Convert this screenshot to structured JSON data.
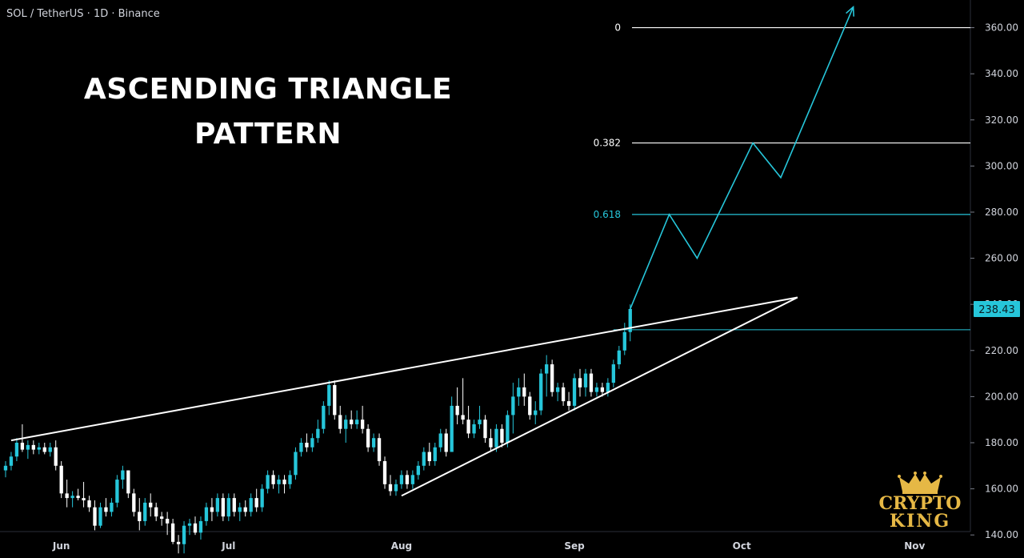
{
  "header": {
    "symbol": "SOL / TetherUS · 1D · Binance"
  },
  "title": {
    "line1": "ASCENDING TRIANGLE",
    "line2": "PATTERN"
  },
  "logo": {
    "line1": "CRYPTO",
    "line2": "KING",
    "color": "#e6b845"
  },
  "chart_data": {
    "type": "candlestick",
    "y_axis": {
      "ylim": [
        130,
        372
      ],
      "ticks": [
        140,
        160,
        180,
        200,
        220,
        240,
        260,
        280,
        300,
        320,
        340,
        360
      ],
      "tick_labels": [
        "140.00",
        "160.00",
        "180.00",
        "200.00",
        "220.00",
        "240.00",
        "260.00",
        "280.00",
        "300.00",
        "320.00",
        "340.00",
        "360.00"
      ]
    },
    "x_axis": {
      "months": [
        "Jun",
        "Jul",
        "Aug",
        "Sep",
        "Oct",
        "Nov"
      ],
      "month_day": [
        10,
        40,
        71,
        102,
        132,
        163
      ],
      "xlim": [
        -1,
        173
      ]
    },
    "last_price": "238.43",
    "colors": {
      "up": "#26c6da",
      "down": "#ffffff",
      "fib": "#26c6da",
      "line": "#ffffff"
    },
    "fib_levels": [
      {
        "label": "0",
        "value": 360,
        "color": "#ffffff"
      },
      {
        "label": "0.382",
        "value": 310,
        "color": "#ffffff"
      },
      {
        "label": "0.618",
        "value": 279,
        "color": "#26c6da"
      }
    ],
    "breakout_level": 229,
    "trendlines": [
      {
        "name": "resistance",
        "from": [
          1,
          181
        ],
        "to": [
          142,
          243
        ]
      },
      {
        "name": "support",
        "from": [
          71,
          157
        ],
        "to": [
          142,
          243
        ]
      }
    ],
    "projection_path": [
      [
        112,
        238
      ],
      [
        119,
        279
      ],
      [
        124,
        260
      ],
      [
        134,
        310
      ],
      [
        139,
        295
      ],
      [
        152,
        369
      ]
    ],
    "candles": [
      {
        "d": 0,
        "o": 168,
        "h": 172,
        "l": 165,
        "c": 170
      },
      {
        "d": 1,
        "o": 170,
        "h": 176,
        "l": 168,
        "c": 174
      },
      {
        "d": 2,
        "o": 174,
        "h": 182,
        "l": 172,
        "c": 180
      },
      {
        "d": 3,
        "o": 180,
        "h": 188,
        "l": 176,
        "c": 177
      },
      {
        "d": 4,
        "o": 177,
        "h": 181,
        "l": 173,
        "c": 179
      },
      {
        "d": 5,
        "o": 179,
        "h": 181,
        "l": 175,
        "c": 177
      },
      {
        "d": 6,
        "o": 177,
        "h": 180,
        "l": 175,
        "c": 178
      },
      {
        "d": 7,
        "o": 178,
        "h": 180,
        "l": 175,
        "c": 176
      },
      {
        "d": 8,
        "o": 176,
        "h": 180,
        "l": 174,
        "c": 178
      },
      {
        "d": 9,
        "o": 178,
        "h": 181,
        "l": 168,
        "c": 170
      },
      {
        "d": 10,
        "o": 170,
        "h": 172,
        "l": 156,
        "c": 158
      },
      {
        "d": 11,
        "o": 158,
        "h": 164,
        "l": 152,
        "c": 156
      },
      {
        "d": 12,
        "o": 156,
        "h": 159,
        "l": 152,
        "c": 157
      },
      {
        "d": 13,
        "o": 157,
        "h": 160,
        "l": 155,
        "c": 156
      },
      {
        "d": 14,
        "o": 156,
        "h": 163,
        "l": 152,
        "c": 155
      },
      {
        "d": 15,
        "o": 155,
        "h": 157,
        "l": 150,
        "c": 152
      },
      {
        "d": 16,
        "o": 152,
        "h": 155,
        "l": 142,
        "c": 144
      },
      {
        "d": 17,
        "o": 144,
        "h": 154,
        "l": 143,
        "c": 152
      },
      {
        "d": 18,
        "o": 152,
        "h": 156,
        "l": 148,
        "c": 150
      },
      {
        "d": 19,
        "o": 150,
        "h": 156,
        "l": 148,
        "c": 154
      },
      {
        "d": 20,
        "o": 154,
        "h": 166,
        "l": 152,
        "c": 164
      },
      {
        "d": 21,
        "o": 164,
        "h": 170,
        "l": 160,
        "c": 168
      },
      {
        "d": 22,
        "o": 168,
        "h": 168,
        "l": 156,
        "c": 158
      },
      {
        "d": 23,
        "o": 158,
        "h": 160,
        "l": 148,
        "c": 150
      },
      {
        "d": 24,
        "o": 150,
        "h": 156,
        "l": 142,
        "c": 146
      },
      {
        "d": 25,
        "o": 146,
        "h": 156,
        "l": 144,
        "c": 154
      },
      {
        "d": 26,
        "o": 154,
        "h": 158,
        "l": 148,
        "c": 152
      },
      {
        "d": 27,
        "o": 152,
        "h": 154,
        "l": 146,
        "c": 148
      },
      {
        "d": 28,
        "o": 148,
        "h": 150,
        "l": 144,
        "c": 147
      },
      {
        "d": 29,
        "o": 147,
        "h": 150,
        "l": 140,
        "c": 145
      },
      {
        "d": 30,
        "o": 145,
        "h": 147,
        "l": 136,
        "c": 137
      },
      {
        "d": 31,
        "o": 137,
        "h": 140,
        "l": 132,
        "c": 136
      },
      {
        "d": 32,
        "o": 136,
        "h": 146,
        "l": 132,
        "c": 144
      },
      {
        "d": 33,
        "o": 144,
        "h": 147,
        "l": 140,
        "c": 145
      },
      {
        "d": 34,
        "o": 145,
        "h": 148,
        "l": 140,
        "c": 141
      },
      {
        "d": 35,
        "o": 141,
        "h": 148,
        "l": 138,
        "c": 146
      },
      {
        "d": 36,
        "o": 146,
        "h": 154,
        "l": 144,
        "c": 152
      },
      {
        "d": 37,
        "o": 152,
        "h": 156,
        "l": 146,
        "c": 150
      },
      {
        "d": 38,
        "o": 150,
        "h": 158,
        "l": 148,
        "c": 156
      },
      {
        "d": 39,
        "o": 156,
        "h": 158,
        "l": 146,
        "c": 148
      },
      {
        "d": 40,
        "o": 148,
        "h": 158,
        "l": 146,
        "c": 156
      },
      {
        "d": 41,
        "o": 156,
        "h": 158,
        "l": 148,
        "c": 150
      },
      {
        "d": 42,
        "o": 150,
        "h": 154,
        "l": 146,
        "c": 152
      },
      {
        "d": 43,
        "o": 152,
        "h": 155,
        "l": 148,
        "c": 150
      },
      {
        "d": 44,
        "o": 150,
        "h": 158,
        "l": 148,
        "c": 156
      },
      {
        "d": 45,
        "o": 156,
        "h": 160,
        "l": 150,
        "c": 152
      },
      {
        "d": 46,
        "o": 152,
        "h": 162,
        "l": 150,
        "c": 160
      },
      {
        "d": 47,
        "o": 160,
        "h": 168,
        "l": 158,
        "c": 166
      },
      {
        "d": 48,
        "o": 166,
        "h": 168,
        "l": 160,
        "c": 162
      },
      {
        "d": 49,
        "o": 162,
        "h": 166,
        "l": 158,
        "c": 164
      },
      {
        "d": 50,
        "o": 164,
        "h": 166,
        "l": 158,
        "c": 162
      },
      {
        "d": 51,
        "o": 162,
        "h": 168,
        "l": 160,
        "c": 166
      },
      {
        "d": 52,
        "o": 166,
        "h": 178,
        "l": 164,
        "c": 176
      },
      {
        "d": 53,
        "o": 176,
        "h": 182,
        "l": 174,
        "c": 180
      },
      {
        "d": 54,
        "o": 180,
        "h": 184,
        "l": 176,
        "c": 178
      },
      {
        "d": 55,
        "o": 178,
        "h": 184,
        "l": 176,
        "c": 182
      },
      {
        "d": 56,
        "o": 182,
        "h": 190,
        "l": 180,
        "c": 186
      },
      {
        "d": 57,
        "o": 186,
        "h": 198,
        "l": 184,
        "c": 196
      },
      {
        "d": 58,
        "o": 196,
        "h": 207,
        "l": 192,
        "c": 205
      },
      {
        "d": 59,
        "o": 205,
        "h": 207,
        "l": 190,
        "c": 192
      },
      {
        "d": 60,
        "o": 192,
        "h": 196,
        "l": 184,
        "c": 186
      },
      {
        "d": 61,
        "o": 186,
        "h": 192,
        "l": 180,
        "c": 190
      },
      {
        "d": 62,
        "o": 190,
        "h": 194,
        "l": 186,
        "c": 188
      },
      {
        "d": 63,
        "o": 188,
        "h": 194,
        "l": 186,
        "c": 190
      },
      {
        "d": 64,
        "o": 190,
        "h": 196,
        "l": 184,
        "c": 186
      },
      {
        "d": 65,
        "o": 186,
        "h": 188,
        "l": 176,
        "c": 178
      },
      {
        "d": 66,
        "o": 178,
        "h": 184,
        "l": 176,
        "c": 182
      },
      {
        "d": 67,
        "o": 182,
        "h": 184,
        "l": 170,
        "c": 172
      },
      {
        "d": 68,
        "o": 172,
        "h": 174,
        "l": 160,
        "c": 162
      },
      {
        "d": 69,
        "o": 162,
        "h": 166,
        "l": 157,
        "c": 159
      },
      {
        "d": 70,
        "o": 159,
        "h": 164,
        "l": 157,
        "c": 162
      },
      {
        "d": 71,
        "o": 162,
        "h": 168,
        "l": 160,
        "c": 166
      },
      {
        "d": 72,
        "o": 166,
        "h": 168,
        "l": 160,
        "c": 162
      },
      {
        "d": 73,
        "o": 162,
        "h": 168,
        "l": 160,
        "c": 166
      },
      {
        "d": 74,
        "o": 166,
        "h": 172,
        "l": 164,
        "c": 170
      },
      {
        "d": 75,
        "o": 170,
        "h": 178,
        "l": 168,
        "c": 176
      },
      {
        "d": 76,
        "o": 176,
        "h": 180,
        "l": 170,
        "c": 172
      },
      {
        "d": 77,
        "o": 172,
        "h": 180,
        "l": 170,
        "c": 178
      },
      {
        "d": 78,
        "o": 178,
        "h": 186,
        "l": 176,
        "c": 184
      },
      {
        "d": 79,
        "o": 184,
        "h": 186,
        "l": 174,
        "c": 176
      },
      {
        "d": 80,
        "o": 176,
        "h": 200,
        "l": 176,
        "c": 196
      },
      {
        "d": 81,
        "o": 196,
        "h": 204,
        "l": 188,
        "c": 192
      },
      {
        "d": 82,
        "o": 192,
        "h": 208,
        "l": 188,
        "c": 190
      },
      {
        "d": 83,
        "o": 190,
        "h": 196,
        "l": 182,
        "c": 184
      },
      {
        "d": 84,
        "o": 184,
        "h": 190,
        "l": 182,
        "c": 188
      },
      {
        "d": 85,
        "o": 188,
        "h": 196,
        "l": 186,
        "c": 190
      },
      {
        "d": 86,
        "o": 190,
        "h": 192,
        "l": 180,
        "c": 182
      },
      {
        "d": 87,
        "o": 182,
        "h": 186,
        "l": 176,
        "c": 178
      },
      {
        "d": 88,
        "o": 178,
        "h": 188,
        "l": 176,
        "c": 186
      },
      {
        "d": 89,
        "o": 186,
        "h": 188,
        "l": 178,
        "c": 180
      },
      {
        "d": 90,
        "o": 180,
        "h": 194,
        "l": 178,
        "c": 192
      },
      {
        "d": 91,
        "o": 192,
        "h": 206,
        "l": 184,
        "c": 200
      },
      {
        "d": 92,
        "o": 200,
        "h": 208,
        "l": 196,
        "c": 204
      },
      {
        "d": 93,
        "o": 204,
        "h": 210,
        "l": 196,
        "c": 200
      },
      {
        "d": 94,
        "o": 200,
        "h": 202,
        "l": 190,
        "c": 192
      },
      {
        "d": 95,
        "o": 192,
        "h": 198,
        "l": 188,
        "c": 194
      },
      {
        "d": 96,
        "o": 194,
        "h": 212,
        "l": 192,
        "c": 210
      },
      {
        "d": 97,
        "o": 210,
        "h": 218,
        "l": 200,
        "c": 214
      },
      {
        "d": 98,
        "o": 214,
        "h": 216,
        "l": 200,
        "c": 202
      },
      {
        "d": 99,
        "o": 202,
        "h": 206,
        "l": 198,
        "c": 204
      },
      {
        "d": 100,
        "o": 204,
        "h": 206,
        "l": 196,
        "c": 198
      },
      {
        "d": 101,
        "o": 198,
        "h": 202,
        "l": 194,
        "c": 196
      },
      {
        "d": 102,
        "o": 196,
        "h": 210,
        "l": 194,
        "c": 208
      },
      {
        "d": 103,
        "o": 208,
        "h": 212,
        "l": 200,
        "c": 204
      },
      {
        "d": 104,
        "o": 204,
        "h": 212,
        "l": 200,
        "c": 210
      },
      {
        "d": 105,
        "o": 210,
        "h": 212,
        "l": 200,
        "c": 202
      },
      {
        "d": 106,
        "o": 202,
        "h": 206,
        "l": 200,
        "c": 204
      },
      {
        "d": 107,
        "o": 204,
        "h": 206,
        "l": 200,
        "c": 202
      },
      {
        "d": 108,
        "o": 202,
        "h": 208,
        "l": 200,
        "c": 206
      },
      {
        "d": 109,
        "o": 206,
        "h": 216,
        "l": 204,
        "c": 214
      },
      {
        "d": 110,
        "o": 214,
        "h": 222,
        "l": 212,
        "c": 220
      },
      {
        "d": 111,
        "o": 220,
        "h": 232,
        "l": 218,
        "c": 228
      },
      {
        "d": 112,
        "o": 228,
        "h": 240,
        "l": 224,
        "c": 238
      }
    ]
  }
}
